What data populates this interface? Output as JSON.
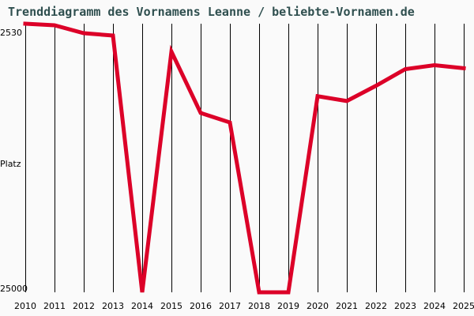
{
  "title": "Trenddiagramm des Vornamens Leanne / beliebte-Vornamen.de",
  "y_axis": {
    "top_label": "2530",
    "middle_label": "Platz",
    "bottom_label": "25000"
  },
  "colors": {
    "line": "#dc0028",
    "title": "#2f4f4f",
    "grid": "#000000",
    "background": "#fafafa"
  },
  "chart_data": {
    "type": "line",
    "title": "Trenddiagramm des Vornamens Leanne / beliebte-Vornamen.de",
    "xlabel": "",
    "ylabel": "Platz",
    "y_inverted": true,
    "ylim": [
      2530,
      25000
    ],
    "grid": "vertical lines per year",
    "categories": [
      "2010",
      "2011",
      "2012",
      "2013",
      "2014",
      "2015",
      "2016",
      "2017",
      "2018",
      "2019",
      "2020",
      "2021",
      "2022",
      "2023",
      "2024",
      "2025"
    ],
    "series": [
      {
        "name": "Leanne",
        "values": [
          2530,
          2660,
          3320,
          3520,
          25000,
          4860,
          10000,
          10790,
          25000,
          25000,
          8600,
          9000,
          7720,
          6330,
          6000,
          6260
        ]
      }
    ]
  }
}
